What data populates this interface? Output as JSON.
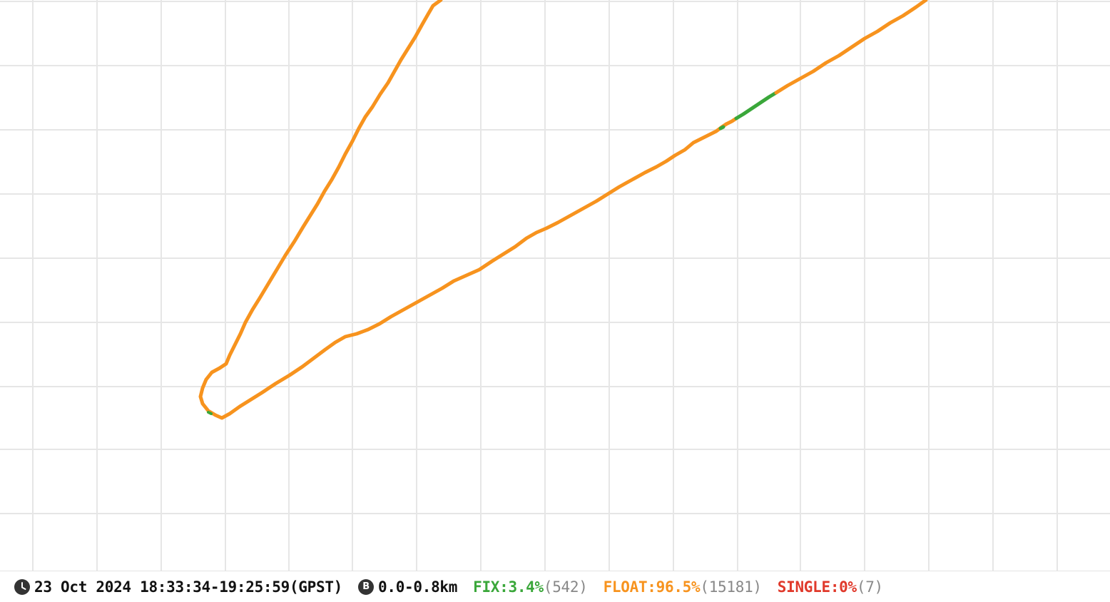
{
  "status": {
    "time_icon": "clock-icon",
    "time_range": "23 Oct 2024 18:33:34-19:25:59(GPST)",
    "baseline_icon": "baseline-b-icon",
    "baseline_letter": "B",
    "baseline_range": "0.0-0.8km",
    "fix": {
      "label": "FIX:3.4%",
      "count": "(542)",
      "color": "#3aa73a"
    },
    "float": {
      "label": "FLOAT:96.5%",
      "count": "(15181)",
      "color": "#f7931e"
    },
    "single": {
      "label": "SINGLE:0%",
      "count": "(7)",
      "color": "#e0392b"
    }
  },
  "map": {
    "grid_color": "#e6e6e6",
    "track_colors": {
      "float": "#f7931e",
      "fix": "#3aa73a"
    }
  }
}
